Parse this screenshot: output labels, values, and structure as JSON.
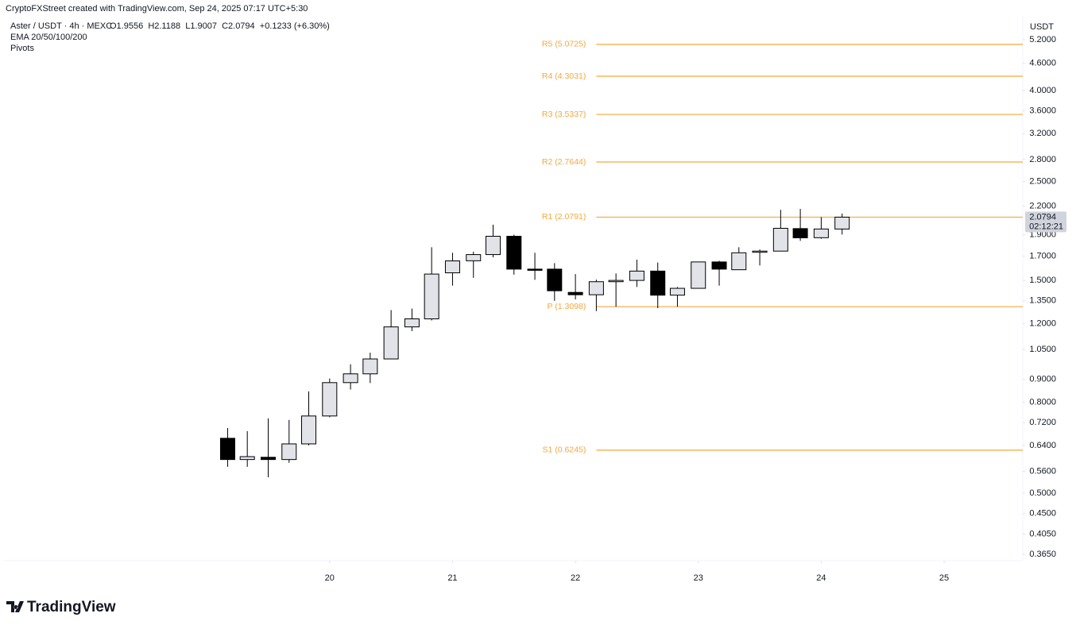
{
  "chart_data": {
    "type": "candlestick",
    "attribution": "CryptoFXStreet created with TradingView.com, Sep 24, 2025 07:17 UTC+5:30",
    "title": "Aster / USDT · 4h · MEXC",
    "ohlc_legend": "O1.9556  H2.1188  L1.9007  C2.0794  +0.1233 (+6.30%)",
    "indicators": [
      "EMA 20/50/100/200",
      "Pivots"
    ],
    "y_unit": "USDT",
    "brand": "TradingView",
    "log_scale": true,
    "up_color": "#e1e3e8",
    "down_color": "#000000",
    "x": [
      19.17,
      19.33,
      19.5,
      19.67,
      19.83,
      20,
      20.17,
      20.33,
      20.5,
      20.67,
      20.83,
      21,
      21.17,
      21.33,
      21.5,
      21.67,
      21.83,
      22,
      22.17,
      22.33,
      22.5,
      22.67,
      22.83,
      23,
      23.17,
      23.33,
      23.5,
      23.67,
      23.83,
      24,
      24.17
    ],
    "open": [
      0.664,
      0.595,
      0.602,
      0.595,
      0.645,
      0.745,
      0.885,
      0.926,
      1.0,
      1.18,
      1.23,
      1.56,
      1.66,
      1.714,
      1.884,
      1.59,
      1.59,
      1.41,
      1.393,
      1.49,
      1.5,
      1.574,
      1.39,
      1.44,
      1.65,
      1.585,
      1.735,
      1.745,
      1.96,
      1.87,
      1.9556
    ],
    "high": [
      0.7,
      0.689,
      0.736,
      0.73,
      0.846,
      0.904,
      0.973,
      1.033,
      1.287,
      1.297,
      1.78,
      1.73,
      1.74,
      2.0,
      1.9,
      1.73,
      1.64,
      1.55,
      1.506,
      1.555,
      1.67,
      1.645,
      1.45,
      1.65,
      1.66,
      1.78,
      1.76,
      2.16,
      2.17,
      2.08,
      2.1188
    ],
    "low": [
      0.573,
      0.573,
      0.543,
      0.585,
      0.64,
      0.74,
      0.854,
      0.883,
      1.0,
      1.155,
      1.22,
      1.46,
      1.52,
      1.69,
      1.545,
      1.505,
      1.35,
      1.36,
      1.28,
      1.31,
      1.45,
      1.3,
      1.31,
      1.44,
      1.46,
      1.585,
      1.62,
      1.745,
      1.84,
      1.86,
      1.9007
    ],
    "close": [
      0.595,
      0.604,
      0.595,
      0.645,
      0.745,
      0.885,
      0.926,
      1.0,
      1.18,
      1.23,
      1.55,
      1.659,
      1.714,
      1.884,
      1.59,
      1.585,
      1.422,
      1.393,
      1.49,
      1.5,
      1.574,
      1.39,
      1.44,
      1.65,
      1.59,
      1.73,
      1.745,
      1.963,
      1.869,
      1.956,
      2.0794
    ],
    "xlim": [
      17.35,
      25.64
    ],
    "xticks": [
      20,
      21,
      22,
      23,
      24,
      25
    ],
    "ylim": [
      0.353,
      5.37
    ],
    "yticks": [
      {
        "value": 5.2,
        "label": "5.2000"
      },
      {
        "value": 4.6,
        "label": "4.6000"
      },
      {
        "value": 4.0,
        "label": "4.0000"
      },
      {
        "value": 3.6,
        "label": "3.6000"
      },
      {
        "value": 3.2,
        "label": "3.2000"
      },
      {
        "value": 2.8,
        "label": "2.8000"
      },
      {
        "value": 2.5,
        "label": "2.5000"
      },
      {
        "value": 2.2,
        "label": "2.2000"
      },
      {
        "value": 1.9,
        "label": "1.9000"
      },
      {
        "value": 1.7,
        "label": "1.7000"
      },
      {
        "value": 1.5,
        "label": "1.5000"
      },
      {
        "value": 1.35,
        "label": "1.3500"
      },
      {
        "value": 1.2,
        "label": "1.2000"
      },
      {
        "value": 1.05,
        "label": "1.0500"
      },
      {
        "value": 0.9,
        "label": "0.9000"
      },
      {
        "value": 0.8,
        "label": "0.8000"
      },
      {
        "value": 0.72,
        "label": "0.7200"
      },
      {
        "value": 0.64,
        "label": "0.6400"
      },
      {
        "value": 0.56,
        "label": "0.5600"
      },
      {
        "value": 0.5,
        "label": "0.5000"
      },
      {
        "value": 0.45,
        "label": "0.4500"
      },
      {
        "value": 0.405,
        "label": "0.4050"
      },
      {
        "value": 0.365,
        "label": "0.3650"
      }
    ],
    "last_price": {
      "value": 2.0794,
      "label": "2.0794"
    },
    "countdown": "02:12:21",
    "pivots": {
      "color": "#f5a73c",
      "from": 22.17,
      "levels": [
        {
          "value": 5.0725,
          "label": "R5 (5.0725)"
        },
        {
          "value": 4.3031,
          "label": "R4 (4.3031)"
        },
        {
          "value": 3.5337,
          "label": "R3 (3.5337)"
        },
        {
          "value": 2.7644,
          "label": "R2 (2.7644)"
        },
        {
          "value": 2.0791,
          "label": "R1 (2.0791)"
        },
        {
          "value": 1.3098,
          "label": "P (1.3098)"
        },
        {
          "value": 0.6245,
          "label": "S1 (0.6245)"
        }
      ]
    }
  }
}
